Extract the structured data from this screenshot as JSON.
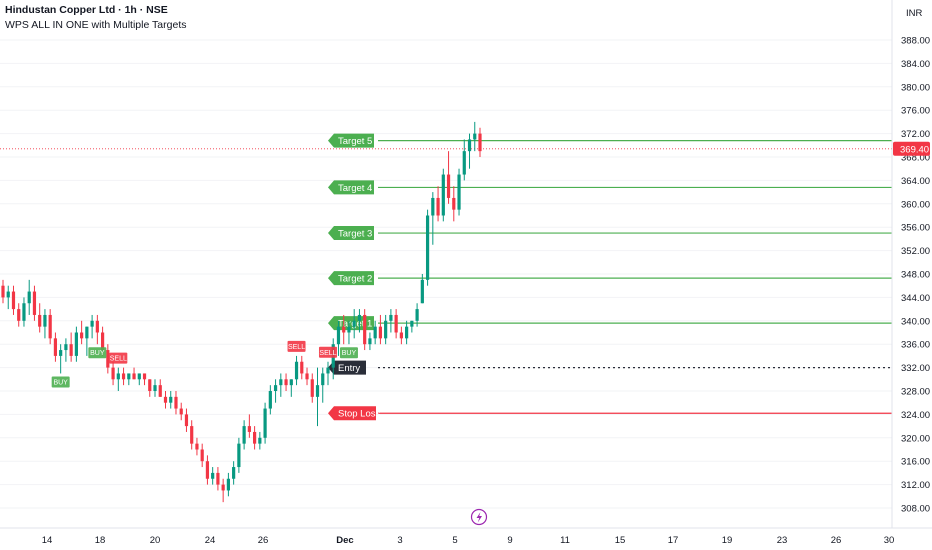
{
  "header": {
    "title": "Hindustan Copper Ltd · 1h · NSE",
    "indicator": "WPS ALL IN ONE with Multiple Targets"
  },
  "currency": "INR",
  "last_price_label": "369.40",
  "colors": {
    "up": "#089981",
    "down": "#f23645",
    "target": "#4caf50",
    "stop": "#f23645",
    "entry": "#2a2e39",
    "icon": "#9c27b0"
  },
  "icon": "lightning-icon",
  "chart_data": {
    "type": "candlestick",
    "title": "",
    "ylim": [
      306,
      392
    ],
    "y_ticks": [
      308,
      312,
      316,
      320,
      324,
      328,
      332,
      336,
      340,
      344,
      348,
      352,
      356,
      360,
      364,
      368,
      372,
      376,
      380,
      384,
      388
    ],
    "x_ticks": [
      "14",
      "18",
      "20",
      "24",
      "26",
      "Dec",
      "3",
      "5",
      "9",
      "11",
      "15",
      "17",
      "19",
      "23",
      "26",
      "30"
    ],
    "last_price": 369.4,
    "levels": [
      {
        "label": "Target 5",
        "value": 370.8,
        "kind": "target"
      },
      {
        "label": "Target 4",
        "value": 362.8,
        "kind": "target"
      },
      {
        "label": "Target 3",
        "value": 355.0,
        "kind": "target"
      },
      {
        "label": "Target 2",
        "value": 347.3,
        "kind": "target"
      },
      {
        "label": "Target 1",
        "value": 339.6,
        "kind": "target"
      },
      {
        "label": "Entry",
        "value": 332.0,
        "kind": "entry"
      },
      {
        "label": "Stop Loss",
        "value": 324.2,
        "kind": "stop"
      }
    ],
    "candles": [
      [
        346,
        347,
        343,
        344
      ],
      [
        344,
        346,
        342,
        345
      ],
      [
        345,
        346,
        341,
        342
      ],
      [
        342,
        343,
        339,
        340
      ],
      [
        340,
        344,
        339,
        343
      ],
      [
        343,
        347,
        341,
        345
      ],
      [
        345,
        346,
        340,
        341
      ],
      [
        341,
        343,
        338,
        339
      ],
      [
        339,
        342,
        337,
        341
      ],
      [
        341,
        342,
        336,
        337
      ],
      [
        337,
        338,
        333,
        334
      ],
      [
        334,
        336,
        331,
        335
      ],
      [
        335,
        337,
        333,
        336
      ],
      [
        336,
        338,
        333,
        334
      ],
      [
        334,
        339,
        333,
        338
      ],
      [
        338,
        340,
        336,
        337
      ],
      [
        337,
        339,
        334,
        339
      ],
      [
        339,
        341,
        337,
        340
      ],
      [
        340,
        341,
        336,
        338
      ],
      [
        338,
        339,
        334,
        335
      ],
      [
        335,
        336,
        331,
        332
      ],
      [
        332,
        333,
        329,
        330
      ],
      [
        330,
        332,
        328,
        331
      ],
      [
        331,
        332,
        329,
        330
      ],
      [
        330,
        331,
        329,
        331
      ],
      [
        331,
        332,
        330,
        330
      ],
      [
        330,
        331,
        329,
        331
      ],
      [
        331,
        331,
        329,
        330
      ],
      [
        330,
        330,
        327,
        328
      ],
      [
        328,
        330,
        327,
        329
      ],
      [
        329,
        330,
        327,
        327
      ],
      [
        327,
        328,
        325,
        326
      ],
      [
        326,
        328,
        325,
        327
      ],
      [
        327,
        328,
        324,
        325
      ],
      [
        325,
        326,
        323,
        324
      ],
      [
        324,
        325,
        321,
        322
      ],
      [
        322,
        323,
        318,
        319
      ],
      [
        319,
        320,
        317,
        318
      ],
      [
        318,
        319,
        315,
        316
      ],
      [
        316,
        317,
        312,
        313
      ],
      [
        313,
        315,
        312,
        314
      ],
      [
        314,
        315,
        311,
        312
      ],
      [
        312,
        313,
        309,
        311
      ],
      [
        311,
        314,
        310,
        313
      ],
      [
        313,
        316,
        312,
        315
      ],
      [
        315,
        320,
        314,
        319
      ],
      [
        319,
        323,
        318,
        322
      ],
      [
        322,
        324,
        320,
        321
      ],
      [
        321,
        322,
        318,
        319
      ],
      [
        319,
        321,
        318,
        320
      ],
      [
        320,
        326,
        319,
        325
      ],
      [
        325,
        329,
        324,
        328
      ],
      [
        328,
        330,
        326,
        329
      ],
      [
        329,
        331,
        327,
        330
      ],
      [
        330,
        331,
        328,
        329
      ],
      [
        329,
        330,
        327,
        330
      ],
      [
        330,
        334,
        329,
        333
      ],
      [
        333,
        334,
        330,
        331
      ],
      [
        331,
        332,
        329,
        330
      ],
      [
        330,
        331,
        326,
        327
      ],
      [
        327,
        332,
        322,
        329
      ],
      [
        329,
        332,
        326,
        331
      ],
      [
        331,
        333,
        329,
        332
      ],
      [
        332,
        337,
        330,
        336
      ],
      [
        336,
        340,
        334,
        339
      ],
      [
        339,
        341,
        336,
        338
      ],
      [
        338,
        340,
        336,
        339
      ],
      [
        339,
        342,
        337,
        340
      ],
      [
        340,
        342,
        338,
        341
      ],
      [
        341,
        342,
        335,
        336
      ],
      [
        336,
        338,
        335,
        337
      ],
      [
        337,
        340,
        336,
        339
      ],
      [
        339,
        341,
        336,
        337
      ],
      [
        337,
        341,
        336,
        340
      ],
      [
        340,
        342,
        338,
        341
      ],
      [
        341,
        342,
        337,
        338
      ],
      [
        338,
        339,
        336,
        337
      ],
      [
        337,
        340,
        336,
        339
      ],
      [
        339,
        340,
        338,
        340
      ],
      [
        340,
        343,
        339,
        342
      ],
      [
        343,
        348,
        343,
        347
      ],
      [
        347,
        359,
        346,
        358
      ],
      [
        358,
        362,
        353,
        361
      ],
      [
        361,
        363,
        357,
        358
      ],
      [
        358,
        366,
        357,
        365
      ],
      [
        365,
        369,
        360,
        361
      ],
      [
        361,
        363,
        357,
        359
      ],
      [
        359,
        366,
        358,
        365
      ],
      [
        365,
        371,
        364,
        369
      ],
      [
        369,
        372,
        366,
        371
      ],
      [
        371,
        374,
        369,
        372
      ],
      [
        372,
        373,
        368,
        369
      ]
    ],
    "signals": [
      {
        "index": 11,
        "label": "BUY",
        "kind": "buy"
      },
      {
        "index": 18,
        "label": "BUY",
        "kind": "buy"
      },
      {
        "index": 22,
        "label": "SELL",
        "kind": "sell"
      },
      {
        "index": 56,
        "label": "SELL",
        "kind": "sell"
      },
      {
        "index": 62,
        "label": "SELL",
        "kind": "sell"
      },
      {
        "index": 66,
        "label": "BUY",
        "kind": "buy"
      }
    ]
  }
}
